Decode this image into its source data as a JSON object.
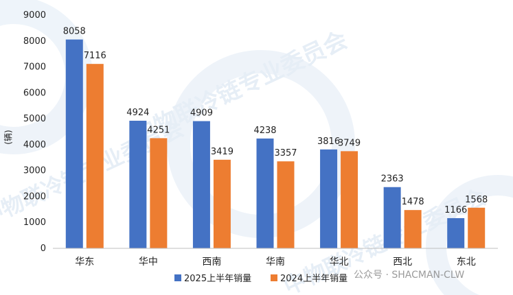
{
  "chart_data": {
    "type": "bar",
    "title": "",
    "xlabel": "",
    "ylabel": "(辆)",
    "ylim": [
      0,
      9000
    ],
    "ytick_step": 1000,
    "grid": false,
    "legend_position": "bottom",
    "categories": [
      "华东",
      "华中",
      "西南",
      "华南",
      "华北",
      "西北",
      "东北"
    ],
    "series": [
      {
        "name": "2025上半年销量",
        "color": "#4472C4",
        "values": [
          8058,
          4924,
          4909,
          4238,
          3816,
          2363,
          1166
        ]
      },
      {
        "name": "2024上半年销量",
        "color": "#ED7D31",
        "values": [
          7116,
          4251,
          3419,
          3357,
          3749,
          1478,
          1568
        ]
      }
    ]
  },
  "watermark": {
    "text": "中物联冷链专业委员会",
    "source": "公众号 · SHACMAN-CLW"
  }
}
